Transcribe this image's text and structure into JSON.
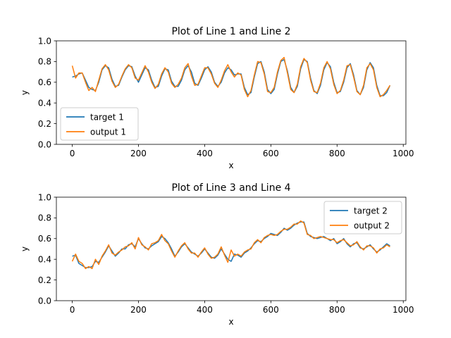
{
  "chart_data": [
    {
      "type": "line",
      "title": "Plot of Line 1 and Line 2",
      "xlabel": "x",
      "ylabel": "y",
      "xlim": [
        -48,
        1008
      ],
      "ylim": [
        0.0,
        1.0
      ],
      "xticks": [
        0,
        200,
        400,
        600,
        800,
        1000
      ],
      "yticks": [
        0.0,
        0.2,
        0.4,
        0.6,
        0.8,
        1.0
      ],
      "xtick_labels": [
        "0",
        "200",
        "400",
        "600",
        "800",
        "1000"
      ],
      "ytick_labels": [
        "0.0",
        "0.2",
        "0.4",
        "0.6",
        "0.8",
        "1.0"
      ],
      "legend_position": "lower-left",
      "series": [
        {
          "name": "target 1",
          "color": "#1f77b4",
          "x": [
            0,
            10,
            20,
            30,
            40,
            50,
            60,
            70,
            80,
            90,
            100,
            110,
            120,
            130,
            140,
            150,
            160,
            170,
            180,
            190,
            200,
            210,
            220,
            230,
            240,
            250,
            260,
            270,
            280,
            290,
            300,
            310,
            320,
            330,
            340,
            350,
            360,
            370,
            380,
            390,
            400,
            410,
            420,
            430,
            440,
            450,
            460,
            470,
            480,
            490,
            500,
            510,
            520,
            530,
            540,
            550,
            560,
            570,
            580,
            590,
            600,
            610,
            620,
            630,
            640,
            650,
            660,
            670,
            680,
            690,
            700,
            710,
            720,
            730,
            740,
            750,
            760,
            770,
            780,
            790,
            800,
            810,
            820,
            830,
            840,
            850,
            860,
            870,
            880,
            890,
            900,
            910,
            920,
            930,
            940,
            950,
            960
          ],
          "y": [
            0.65,
            0.66,
            0.68,
            0.69,
            0.62,
            0.55,
            0.53,
            0.52,
            0.6,
            0.72,
            0.76,
            0.74,
            0.63,
            0.56,
            0.57,
            0.65,
            0.72,
            0.76,
            0.75,
            0.66,
            0.6,
            0.67,
            0.74,
            0.72,
            0.62,
            0.55,
            0.56,
            0.66,
            0.73,
            0.72,
            0.61,
            0.56,
            0.56,
            0.62,
            0.72,
            0.76,
            0.7,
            0.59,
            0.57,
            0.64,
            0.72,
            0.75,
            0.7,
            0.6,
            0.56,
            0.6,
            0.69,
            0.74,
            0.72,
            0.67,
            0.68,
            0.68,
            0.55,
            0.48,
            0.5,
            0.65,
            0.78,
            0.8,
            0.7,
            0.53,
            0.49,
            0.53,
            0.68,
            0.8,
            0.82,
            0.71,
            0.55,
            0.5,
            0.56,
            0.73,
            0.82,
            0.8,
            0.64,
            0.52,
            0.49,
            0.57,
            0.72,
            0.79,
            0.75,
            0.6,
            0.5,
            0.51,
            0.6,
            0.74,
            0.78,
            0.67,
            0.52,
            0.48,
            0.55,
            0.72,
            0.79,
            0.74,
            0.57,
            0.47,
            0.47,
            0.5,
            0.57
          ]
        },
        {
          "name": "output 1",
          "color": "#ff7f0e",
          "x": [
            0,
            10,
            20,
            30,
            40,
            50,
            60,
            70,
            80,
            90,
            100,
            110,
            120,
            130,
            140,
            150,
            160,
            170,
            180,
            190,
            200,
            210,
            220,
            230,
            240,
            250,
            260,
            270,
            280,
            290,
            300,
            310,
            320,
            330,
            340,
            350,
            360,
            370,
            380,
            390,
            400,
            410,
            420,
            430,
            440,
            450,
            460,
            470,
            480,
            490,
            500,
            510,
            520,
            530,
            540,
            550,
            560,
            570,
            580,
            590,
            600,
            610,
            620,
            630,
            640,
            650,
            660,
            670,
            680,
            690,
            700,
            710,
            720,
            730,
            740,
            750,
            760,
            770,
            780,
            790,
            800,
            810,
            820,
            830,
            840,
            850,
            860,
            870,
            880,
            890,
            900,
            910,
            920,
            930,
            940,
            950,
            960
          ],
          "y": [
            0.76,
            0.64,
            0.69,
            0.69,
            0.6,
            0.52,
            0.55,
            0.51,
            0.62,
            0.73,
            0.77,
            0.72,
            0.61,
            0.55,
            0.58,
            0.66,
            0.73,
            0.77,
            0.74,
            0.64,
            0.62,
            0.69,
            0.76,
            0.7,
            0.6,
            0.54,
            0.58,
            0.68,
            0.74,
            0.7,
            0.59,
            0.55,
            0.58,
            0.64,
            0.74,
            0.78,
            0.66,
            0.57,
            0.58,
            0.66,
            0.74,
            0.74,
            0.68,
            0.59,
            0.55,
            0.62,
            0.71,
            0.77,
            0.7,
            0.65,
            0.69,
            0.67,
            0.53,
            0.46,
            0.52,
            0.67,
            0.8,
            0.79,
            0.68,
            0.51,
            0.5,
            0.55,
            0.7,
            0.81,
            0.84,
            0.69,
            0.53,
            0.5,
            0.58,
            0.75,
            0.83,
            0.79,
            0.62,
            0.51,
            0.5,
            0.59,
            0.74,
            0.8,
            0.73,
            0.58,
            0.49,
            0.52,
            0.62,
            0.76,
            0.77,
            0.65,
            0.51,
            0.48,
            0.57,
            0.74,
            0.78,
            0.72,
            0.55,
            0.46,
            0.48,
            0.52,
            0.57
          ]
        }
      ]
    },
    {
      "type": "line",
      "title": "Plot of Line 3 and Line 4",
      "xlabel": "x",
      "ylabel": "y",
      "xlim": [
        -48,
        1008
      ],
      "ylim": [
        0.0,
        1.0
      ],
      "xticks": [
        0,
        200,
        400,
        600,
        800,
        1000
      ],
      "yticks": [
        0.0,
        0.2,
        0.4,
        0.6,
        0.8,
        1.0
      ],
      "xtick_labels": [
        "0",
        "200",
        "400",
        "600",
        "800",
        "1000"
      ],
      "ytick_labels": [
        "0.0",
        "0.2",
        "0.4",
        "0.6",
        "0.8",
        "1.0"
      ],
      "legend_position": "upper-right",
      "series": [
        {
          "name": "target 2",
          "color": "#1f77b4",
          "x": [
            0,
            10,
            20,
            30,
            40,
            50,
            60,
            70,
            80,
            90,
            100,
            110,
            120,
            130,
            140,
            150,
            160,
            170,
            180,
            190,
            200,
            210,
            220,
            230,
            240,
            250,
            260,
            270,
            280,
            290,
            300,
            310,
            320,
            330,
            340,
            350,
            360,
            370,
            380,
            390,
            400,
            410,
            420,
            430,
            440,
            450,
            460,
            470,
            480,
            490,
            500,
            510,
            520,
            530,
            540,
            550,
            560,
            570,
            580,
            590,
            600,
            610,
            620,
            630,
            640,
            650,
            660,
            670,
            680,
            690,
            700,
            710,
            720,
            730,
            740,
            750,
            760,
            770,
            780,
            790,
            800,
            810,
            820,
            830,
            840,
            850,
            860,
            870,
            880,
            890,
            900,
            910,
            920,
            930,
            940,
            950,
            960
          ],
          "y": [
            0.43,
            0.44,
            0.36,
            0.34,
            0.32,
            0.32,
            0.33,
            0.38,
            0.37,
            0.42,
            0.47,
            0.53,
            0.48,
            0.43,
            0.46,
            0.5,
            0.5,
            0.54,
            0.55,
            0.52,
            0.6,
            0.55,
            0.51,
            0.5,
            0.53,
            0.55,
            0.57,
            0.62,
            0.6,
            0.56,
            0.5,
            0.43,
            0.47,
            0.52,
            0.55,
            0.51,
            0.47,
            0.45,
            0.43,
            0.46,
            0.5,
            0.46,
            0.42,
            0.41,
            0.44,
            0.5,
            0.45,
            0.4,
            0.38,
            0.45,
            0.44,
            0.42,
            0.46,
            0.48,
            0.51,
            0.55,
            0.58,
            0.57,
            0.6,
            0.62,
            0.65,
            0.64,
            0.63,
            0.66,
            0.7,
            0.68,
            0.7,
            0.73,
            0.75,
            0.76,
            0.76,
            0.65,
            0.62,
            0.61,
            0.6,
            0.61,
            0.62,
            0.6,
            0.58,
            0.6,
            0.55,
            0.57,
            0.6,
            0.55,
            0.52,
            0.55,
            0.56,
            0.51,
            0.5,
            0.52,
            0.54,
            0.5,
            0.47,
            0.49,
            0.52,
            0.55,
            0.53
          ]
        },
        {
          "name": "output 2",
          "color": "#ff7f0e",
          "x": [
            0,
            10,
            20,
            30,
            40,
            50,
            60,
            70,
            80,
            90,
            100,
            110,
            120,
            130,
            140,
            150,
            160,
            170,
            180,
            190,
            200,
            210,
            220,
            230,
            240,
            250,
            260,
            270,
            280,
            290,
            300,
            310,
            320,
            330,
            340,
            350,
            360,
            370,
            380,
            390,
            400,
            410,
            420,
            430,
            440,
            450,
            460,
            470,
            480,
            490,
            500,
            510,
            520,
            530,
            540,
            550,
            560,
            570,
            580,
            590,
            600,
            610,
            620,
            630,
            640,
            650,
            660,
            670,
            680,
            690,
            700,
            710,
            720,
            730,
            740,
            750,
            760,
            770,
            780,
            790,
            800,
            810,
            820,
            830,
            840,
            850,
            860,
            870,
            880,
            890,
            900,
            910,
            920,
            930,
            940,
            950,
            960
          ],
          "y": [
            0.38,
            0.45,
            0.38,
            0.36,
            0.31,
            0.33,
            0.31,
            0.4,
            0.35,
            0.43,
            0.48,
            0.54,
            0.46,
            0.44,
            0.47,
            0.49,
            0.52,
            0.53,
            0.56,
            0.5,
            0.61,
            0.54,
            0.52,
            0.49,
            0.55,
            0.56,
            0.58,
            0.64,
            0.58,
            0.55,
            0.48,
            0.42,
            0.48,
            0.53,
            0.56,
            0.5,
            0.46,
            0.46,
            0.42,
            0.47,
            0.51,
            0.45,
            0.41,
            0.42,
            0.45,
            0.52,
            0.44,
            0.37,
            0.49,
            0.43,
            0.45,
            0.43,
            0.47,
            0.49,
            0.5,
            0.56,
            0.59,
            0.56,
            0.61,
            0.63,
            0.64,
            0.63,
            0.64,
            0.67,
            0.69,
            0.69,
            0.71,
            0.74,
            0.74,
            0.77,
            0.75,
            0.64,
            0.63,
            0.6,
            0.61,
            0.62,
            0.61,
            0.6,
            0.59,
            0.59,
            0.56,
            0.58,
            0.59,
            0.56,
            0.53,
            0.54,
            0.57,
            0.52,
            0.49,
            0.53,
            0.53,
            0.51,
            0.46,
            0.5,
            0.51,
            0.54,
            0.52
          ]
        }
      ]
    }
  ]
}
